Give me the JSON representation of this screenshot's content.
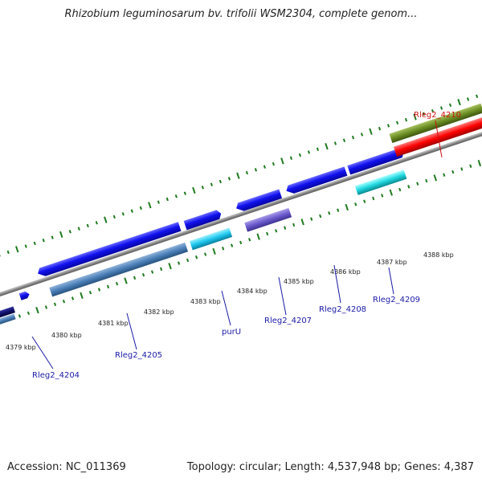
{
  "title": "Rhizobium leguminosarum bv. trifolii WSM2304, complete genom...",
  "footer": {
    "accession": "Accession: NC_011369",
    "summary": "Topology: circular; Length: 4,537,948 bp; Genes: 4,387"
  },
  "colors": {
    "backbone": "#7d7d7d",
    "ticks": "#1f7a1f",
    "label_blue": "#1a1aa8",
    "label_red": "#cc1111"
  },
  "scale_labels": [
    "4379 kbp",
    "4380 kbp",
    "4381 kbp",
    "4382 kbp",
    "4383 kbp",
    "4384 kbp",
    "4385 kbp",
    "4386 kbp",
    "4387 kbp",
    "4388 kbp"
  ],
  "genes": [
    {
      "name": "Rleg2_4204",
      "color": "#1a1aa8"
    },
    {
      "name": "Rleg2_4205",
      "color": "#1a1aa8"
    },
    {
      "name": "purU",
      "color": "#1a1aa8"
    },
    {
      "name": "Rleg2_4207",
      "color": "#1a1aa8"
    },
    {
      "name": "Rleg2_4208",
      "color": "#1a1aa8"
    },
    {
      "name": "Rleg2_4209",
      "color": "#1a1aa8"
    },
    {
      "name": "Rleg2_4210",
      "color": "#cc1111"
    }
  ]
}
